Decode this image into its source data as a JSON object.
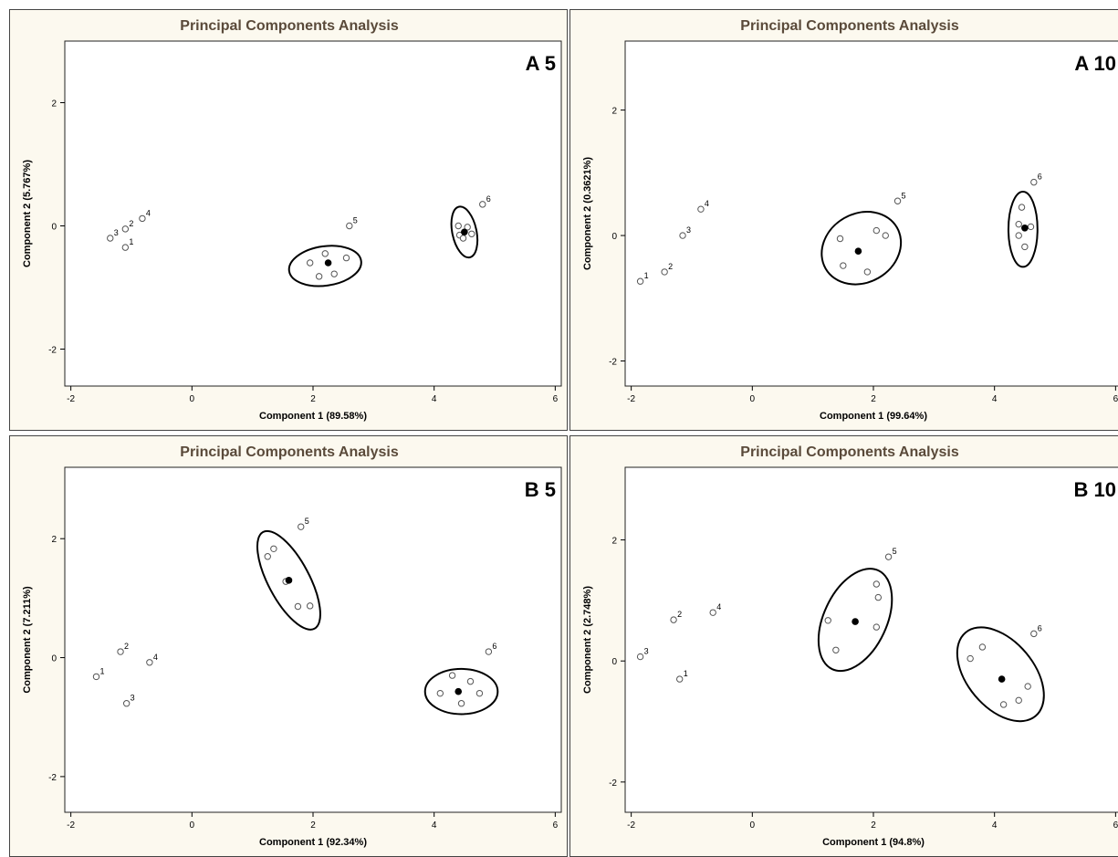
{
  "chart_data": [
    {
      "type": "scatter",
      "title": "Principal Components Analysis",
      "panel_label": "A 5",
      "xlabel": "Component 1 (89.58%)",
      "ylabel": "Component 2 (5.767%)",
      "xlim": [
        -2.1,
        6.1
      ],
      "ylim": [
        -2.6,
        3.0
      ],
      "xticks": [
        -2,
        0,
        2,
        4,
        6
      ],
      "yticks": [
        -2,
        0,
        2
      ],
      "labeled_points": [
        {
          "label": "1",
          "x": -1.1,
          "y": -0.35
        },
        {
          "label": "2",
          "x": -1.1,
          "y": -0.05
        },
        {
          "label": "3",
          "x": -1.35,
          "y": -0.2
        },
        {
          "label": "4",
          "x": -0.82,
          "y": 0.12
        },
        {
          "label": "5",
          "x": 2.6,
          "y": 0.0
        },
        {
          "label": "6",
          "x": 4.8,
          "y": 0.35
        }
      ],
      "group_points": [
        {
          "x": 1.95,
          "y": -0.6
        },
        {
          "x": 2.2,
          "y": -0.45
        },
        {
          "x": 2.55,
          "y": -0.52
        },
        {
          "x": 2.35,
          "y": -0.78
        },
        {
          "x": 2.1,
          "y": -0.82
        },
        {
          "x": 4.4,
          "y": 0.0
        },
        {
          "x": 4.55,
          "y": -0.02
        },
        {
          "x": 4.62,
          "y": -0.13
        },
        {
          "x": 4.42,
          "y": -0.15
        },
        {
          "x": 4.48,
          "y": -0.2
        }
      ],
      "centroids": [
        {
          "x": 2.25,
          "y": -0.6
        },
        {
          "x": 4.5,
          "y": -0.1
        }
      ],
      "ellipses": [
        {
          "cx": 2.2,
          "cy": -0.65,
          "rx": 0.6,
          "ry": 0.32,
          "angle": -8
        },
        {
          "cx": 4.5,
          "cy": -0.1,
          "rx": 0.2,
          "ry": 0.42,
          "angle": -12
        }
      ]
    },
    {
      "type": "scatter",
      "title": "Principal Components Analysis",
      "panel_label": "A 10",
      "xlabel": "Component 1 (99.64%)",
      "ylabel": "Component 2 (0.3621%)",
      "xlim": [
        -2.1,
        6.1
      ],
      "ylim": [
        -2.4,
        3.1
      ],
      "xticks": [
        -2,
        0,
        2,
        4,
        6
      ],
      "yticks": [
        -2,
        0,
        2
      ],
      "labeled_points": [
        {
          "label": "1",
          "x": -1.85,
          "y": -0.73
        },
        {
          "label": "2",
          "x": -1.45,
          "y": -0.58
        },
        {
          "label": "3",
          "x": -1.15,
          "y": 0.0
        },
        {
          "label": "4",
          "x": -0.85,
          "y": 0.42
        },
        {
          "label": "5",
          "x": 2.4,
          "y": 0.55
        },
        {
          "label": "6",
          "x": 4.65,
          "y": 0.85
        }
      ],
      "group_points": [
        {
          "x": 1.45,
          "y": -0.05
        },
        {
          "x": 1.5,
          "y": -0.48
        },
        {
          "x": 1.9,
          "y": -0.58
        },
        {
          "x": 2.05,
          "y": 0.08
        },
        {
          "x": 2.2,
          "y": 0.0
        },
        {
          "x": 4.45,
          "y": 0.45
        },
        {
          "x": 4.4,
          "y": 0.18
        },
        {
          "x": 4.6,
          "y": 0.14
        },
        {
          "x": 4.4,
          "y": 0.0
        },
        {
          "x": 4.5,
          "y": -0.18
        }
      ],
      "centroids": [
        {
          "x": 1.75,
          "y": -0.25
        },
        {
          "x": 4.5,
          "y": 0.12
        }
      ],
      "ellipses": [
        {
          "cx": 1.8,
          "cy": -0.2,
          "rx": 0.68,
          "ry": 0.55,
          "angle": -30
        },
        {
          "cx": 4.47,
          "cy": 0.1,
          "rx": 0.24,
          "ry": 0.6,
          "angle": 0
        }
      ]
    },
    {
      "type": "scatter",
      "title": "Principal Components Analysis",
      "panel_label": "B 5",
      "xlabel": "Component 1 (92.34%)",
      "ylabel": "Component 2 (7.211%)",
      "xlim": [
        -2.1,
        6.1
      ],
      "ylim": [
        -2.6,
        3.2
      ],
      "xticks": [
        -2,
        0,
        2,
        4,
        6
      ],
      "yticks": [
        -2,
        0,
        2
      ],
      "labeled_points": [
        {
          "label": "1",
          "x": -1.58,
          "y": -0.32
        },
        {
          "label": "2",
          "x": -1.18,
          "y": 0.1
        },
        {
          "label": "3",
          "x": -1.08,
          "y": -0.77
        },
        {
          "label": "4",
          "x": -0.7,
          "y": -0.08
        },
        {
          "label": "5",
          "x": 1.8,
          "y": 2.2
        },
        {
          "label": "6",
          "x": 4.9,
          "y": 0.1
        }
      ],
      "group_points": [
        {
          "x": 1.25,
          "y": 1.7
        },
        {
          "x": 1.35,
          "y": 1.83
        },
        {
          "x": 1.55,
          "y": 1.28
        },
        {
          "x": 1.75,
          "y": 0.86
        },
        {
          "x": 1.95,
          "y": 0.87
        },
        {
          "x": 4.1,
          "y": -0.6
        },
        {
          "x": 4.3,
          "y": -0.3
        },
        {
          "x": 4.6,
          "y": -0.4
        },
        {
          "x": 4.75,
          "y": -0.6
        },
        {
          "x": 4.45,
          "y": -0.77
        }
      ],
      "centroids": [
        {
          "x": 1.6,
          "y": 1.3
        },
        {
          "x": 4.4,
          "y": -0.57
        }
      ],
      "ellipses": [
        {
          "cx": 1.6,
          "cy": 1.3,
          "rx": 0.34,
          "ry": 0.92,
          "angle": -28
        },
        {
          "cx": 4.45,
          "cy": -0.57,
          "rx": 0.6,
          "ry": 0.38,
          "angle": 0
        }
      ]
    },
    {
      "type": "scatter",
      "title": "Principal Components Analysis",
      "panel_label": "B 10",
      "xlabel": "Component 1 (94.8%)",
      "ylabel": "Component 2 (2.748%)",
      "xlim": [
        -2.1,
        6.1
      ],
      "ylim": [
        -2.5,
        3.2
      ],
      "xticks": [
        -2,
        0,
        2,
        4,
        6
      ],
      "yticks": [
        -2,
        0,
        2
      ],
      "labeled_points": [
        {
          "label": "1",
          "x": -1.2,
          "y": -0.3
        },
        {
          "label": "2",
          "x": -1.3,
          "y": 0.68
        },
        {
          "label": "3",
          "x": -1.85,
          "y": 0.07
        },
        {
          "label": "4",
          "x": -0.65,
          "y": 0.8
        },
        {
          "label": "5",
          "x": 2.25,
          "y": 1.72
        },
        {
          "label": "6",
          "x": 4.65,
          "y": 0.45
        }
      ],
      "group_points": [
        {
          "x": 1.25,
          "y": 0.67
        },
        {
          "x": 1.38,
          "y": 0.18
        },
        {
          "x": 2.05,
          "y": 1.27
        },
        {
          "x": 2.08,
          "y": 1.05
        },
        {
          "x": 2.05,
          "y": 0.56
        },
        {
          "x": 3.6,
          "y": 0.04
        },
        {
          "x": 3.8,
          "y": 0.23
        },
        {
          "x": 4.55,
          "y": -0.42
        },
        {
          "x": 4.4,
          "y": -0.65
        },
        {
          "x": 4.15,
          "y": -0.72
        }
      ],
      "centroids": [
        {
          "x": 1.7,
          "y": 0.65
        },
        {
          "x": 4.12,
          "y": -0.3
        }
      ],
      "ellipses": [
        {
          "cx": 1.7,
          "cy": 0.68,
          "rx": 0.52,
          "ry": 0.9,
          "angle": 25
        },
        {
          "cx": 4.1,
          "cy": -0.22,
          "rx": 0.55,
          "ry": 0.9,
          "angle": -40
        }
      ]
    }
  ]
}
